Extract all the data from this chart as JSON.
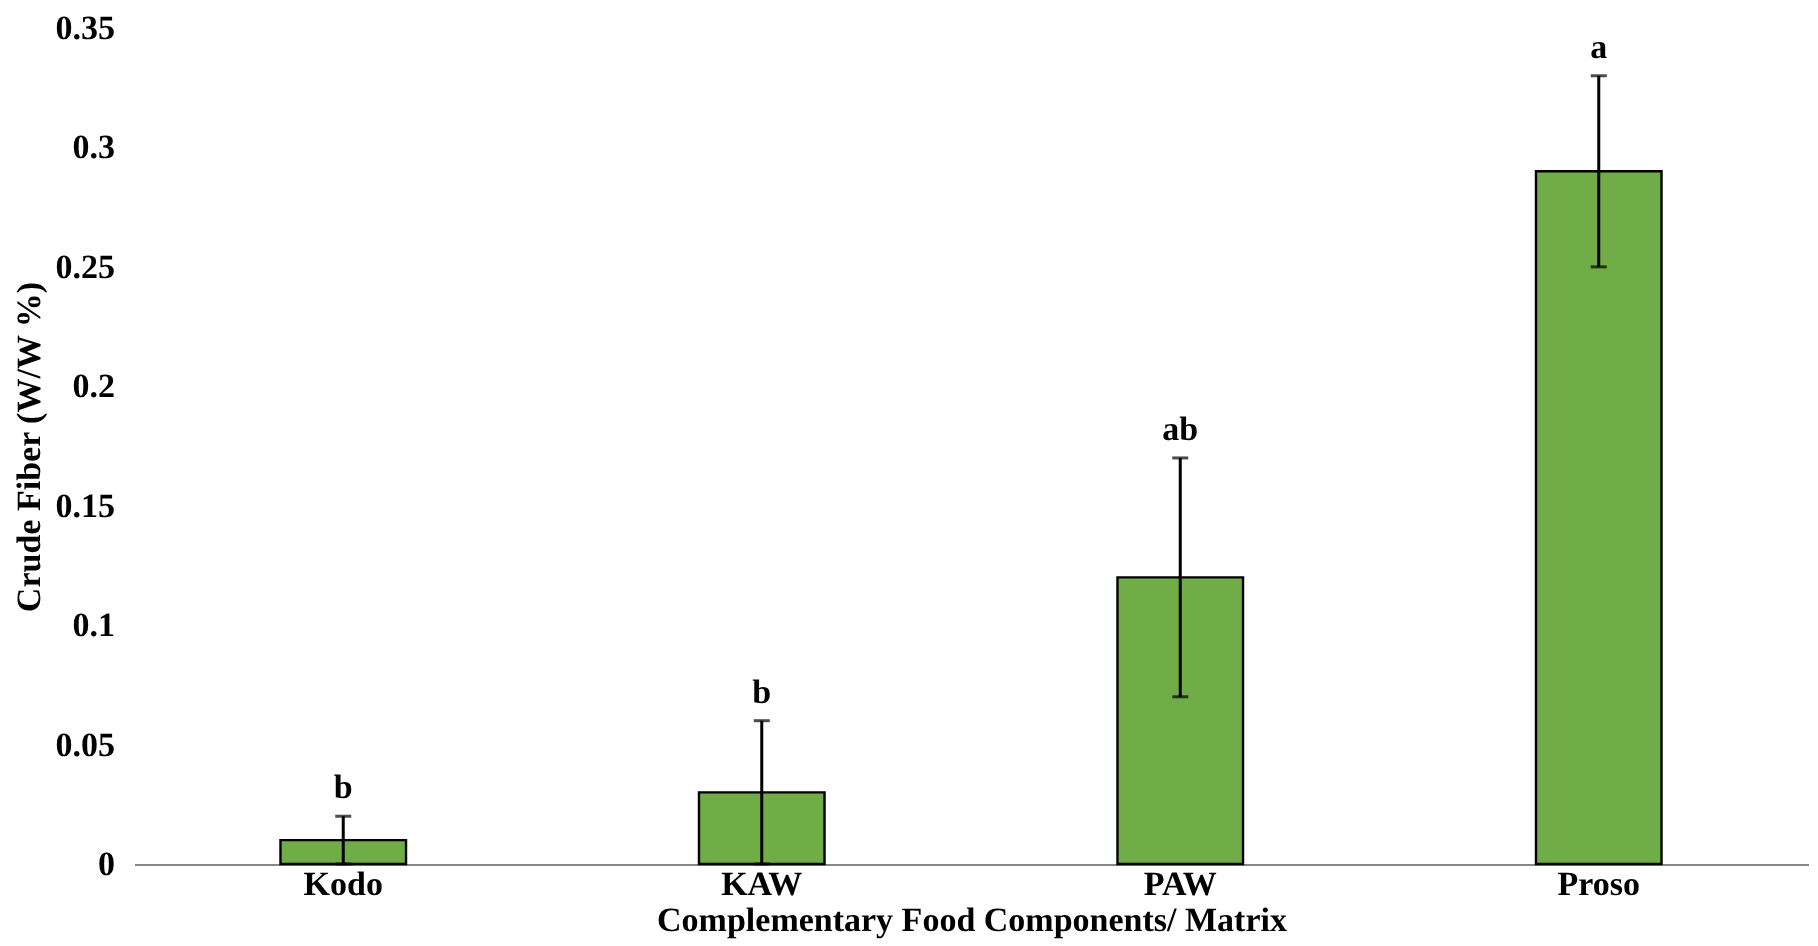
{
  "chart_data": {
    "type": "bar",
    "xlabel": "Complementary Food Components/ Matrix",
    "ylabel": "Crude Fiber  (W/W %)",
    "categories": [
      "Kodo",
      "KAW",
      "PAW",
      "Proso"
    ],
    "values": [
      0.01,
      0.03,
      0.12,
      0.29
    ],
    "errors": [
      0.01,
      0.03,
      0.05,
      0.04
    ],
    "color": "#70ad47",
    "ylim": [
      0,
      0.35
    ],
    "yticks": [
      0,
      0.05,
      0.1,
      0.15,
      0.2,
      0.25,
      0.3,
      0.35
    ],
    "grid": false,
    "annotations": [
      {
        "text": "b",
        "x": "Kodo",
        "y": 0.02
      },
      {
        "text": "b",
        "x": "KAW",
        "y": 0.06
      },
      {
        "text": "ab",
        "x": "PAW",
        "y": 0.17
      },
      {
        "text": "a",
        "x": "Proso",
        "y": 0.33
      }
    ]
  }
}
